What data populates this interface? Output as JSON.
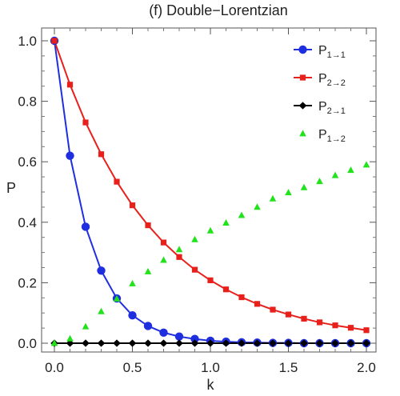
{
  "chart_data": {
    "type": "line",
    "title": "(f) Double−Lorentzian",
    "xlabel": "k",
    "ylabel": "P",
    "xlim": [
      0.0,
      2.0
    ],
    "ylim": [
      0.0,
      1.0
    ],
    "x_ticks": [
      "0.0",
      "0.5",
      "1.0",
      "1.5",
      "2.0"
    ],
    "y_ticks": [
      "0.0",
      "0.2",
      "0.4",
      "0.6",
      "0.8",
      "1.0"
    ],
    "legend_position": "top-right",
    "grid": false,
    "x": [
      0.0,
      0.1,
      0.2,
      0.3,
      0.4,
      0.5,
      0.6,
      0.7,
      0.8,
      0.9,
      1.0,
      1.1,
      1.2,
      1.3,
      1.4,
      1.5,
      1.6,
      1.7,
      1.8,
      1.9,
      2.0
    ],
    "series": [
      {
        "name": "P",
        "sub": "1→1",
        "color": "#1f2fe0",
        "marker": "circle",
        "line": true,
        "values": [
          1.0,
          0.62,
          0.385,
          0.24,
          0.148,
          0.092,
          0.057,
          0.035,
          0.022,
          0.014,
          0.008,
          0.005,
          0.003,
          0.002,
          0.001,
          0.001,
          0.0,
          0.0,
          0.0,
          0.0,
          0.0
        ]
      },
      {
        "name": "P",
        "sub": "2→2",
        "color": "#e8201c",
        "marker": "square",
        "line": true,
        "values": [
          1.0,
          0.855,
          0.73,
          0.625,
          0.534,
          0.456,
          0.39,
          0.333,
          0.285,
          0.243,
          0.208,
          0.178,
          0.152,
          0.13,
          0.111,
          0.095,
          0.081,
          0.069,
          0.059,
          0.051,
          0.043
        ]
      },
      {
        "name": "P",
        "sub": "2→1",
        "color": "#000000",
        "marker": "diamond",
        "line": true,
        "values": [
          0.0,
          0.0,
          0.0,
          0.0,
          0.0,
          0.0,
          0.0,
          0.0,
          0.0,
          0.0,
          0.0,
          0.0,
          0.0,
          0.0,
          0.0,
          0.0,
          0.0,
          0.0,
          0.0,
          0.0,
          0.0
        ]
      },
      {
        "name": "P",
        "sub": "1→2",
        "color": "#22e21c",
        "marker": "triangle",
        "line": false,
        "values": [
          0.0,
          0.015,
          0.055,
          0.105,
          0.147,
          0.197,
          0.237,
          0.275,
          0.31,
          0.343,
          0.372,
          0.398,
          0.423,
          0.45,
          0.478,
          0.498,
          0.515,
          0.535,
          0.555,
          0.572,
          0.59
        ]
      }
    ]
  }
}
